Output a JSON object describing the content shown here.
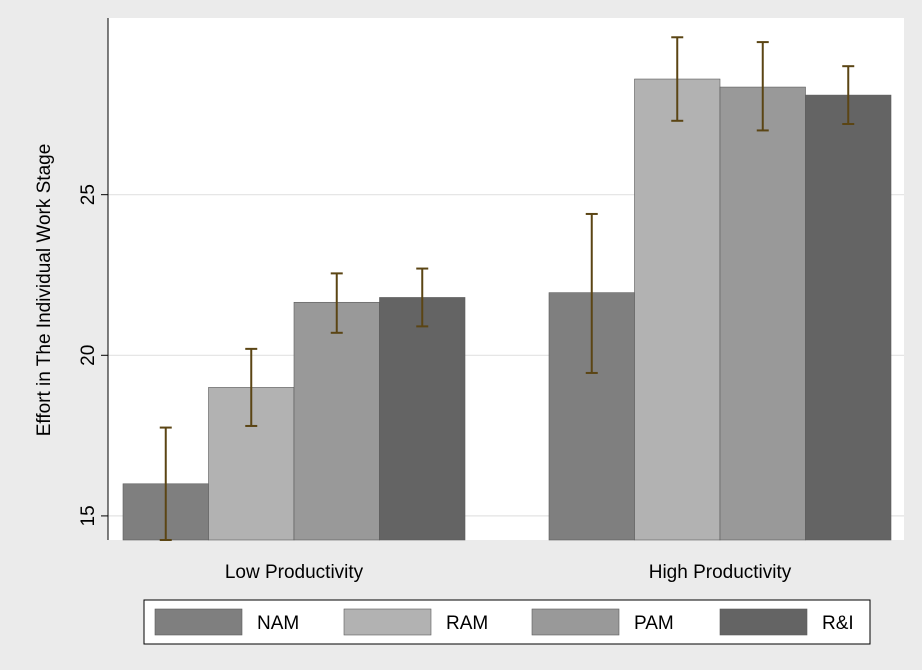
{
  "chart_data": {
    "type": "bar",
    "categories": [
      "Low Productivity",
      "High Productivity"
    ],
    "series": [
      {
        "name": "NAM",
        "color": "#7f7f7f",
        "values": [
          16.0,
          21.95
        ],
        "ci_low": [
          14.25,
          19.45
        ],
        "ci_high": [
          17.75,
          24.4
        ]
      },
      {
        "name": "RAM",
        "color": "#b2b2b2",
        "values": [
          19.0,
          28.6
        ],
        "ci_low": [
          17.8,
          27.3
        ],
        "ci_high": [
          20.2,
          29.9
        ]
      },
      {
        "name": "PAM",
        "color": "#999999",
        "values": [
          21.65,
          28.35
        ],
        "ci_low": [
          20.7,
          27.0
        ],
        "ci_high": [
          22.55,
          29.75
        ]
      },
      {
        "name": "R&I",
        "color": "#646464",
        "values": [
          21.8,
          28.1
        ],
        "ci_low": [
          20.9,
          27.2
        ],
        "ci_high": [
          22.7,
          29.0
        ]
      }
    ],
    "ylabel": "Effort in The Individual Work Stage",
    "xlabel": "",
    "yticks": [
      15,
      20,
      25
    ],
    "ylim": [
      14.25,
      30.5
    ],
    "grid": true,
    "legend_position": "bottom",
    "error_bar_color": "#5b4514",
    "background_color": "#ebebeb",
    "plot_background_color": "#ffffff"
  }
}
